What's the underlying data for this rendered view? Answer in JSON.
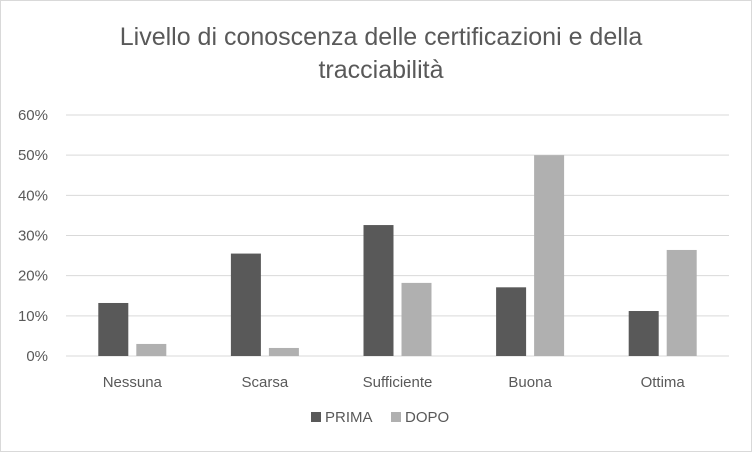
{
  "chart_data": {
    "type": "bar",
    "title_lines": [
      "Livello di conoscenza  delle certificazioni e della",
      "tracciabilità"
    ],
    "categories": [
      "Nessuna",
      "Scarsa",
      "Sufficiente",
      "Buona",
      "Ottima"
    ],
    "series": [
      {
        "name": "PRIMA",
        "color": "#595959",
        "values": [
          13.2,
          25.5,
          32.6,
          17.1,
          11.2
        ]
      },
      {
        "name": "DOPO",
        "color": "#b0b0b0",
        "values": [
          3.0,
          2.0,
          18.2,
          50.0,
          26.4
        ]
      }
    ],
    "ylim": [
      0,
      60
    ],
    "yticks": [
      "0%",
      "10%",
      "20%",
      "30%",
      "40%",
      "50%",
      "60%"
    ],
    "grid": true,
    "legend_position": "bottom",
    "gridline_color": "#d9d9d9"
  }
}
